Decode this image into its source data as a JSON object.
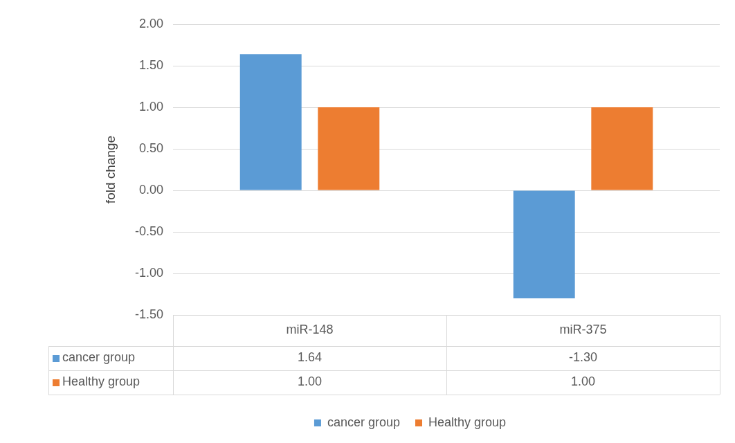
{
  "chart_data": {
    "type": "bar",
    "ylabel": "fold change",
    "categories": [
      "miR-148",
      "miR-375"
    ],
    "series": [
      {
        "name": "cancer group",
        "color": "#5b9bd5",
        "values": [
          1.64,
          -1.3
        ],
        "value_labels": [
          "1.64",
          "-1.30"
        ]
      },
      {
        "name": "Healthy group",
        "color": "#ed7d31",
        "values": [
          1.0,
          1.0
        ],
        "value_labels": [
          "1.00",
          "1.00"
        ]
      }
    ],
    "ylim": [
      -1.5,
      2.0
    ],
    "yticks": [
      {
        "value": -1.5,
        "label": "-1.50"
      },
      {
        "value": -1.0,
        "label": "-1.00"
      },
      {
        "value": -0.5,
        "label": "-0.50"
      },
      {
        "value": 0,
        "label": "0.00"
      },
      {
        "value": 0.5,
        "label": "0.50"
      },
      {
        "value": 1.0,
        "label": "1.00"
      },
      {
        "value": 1.5,
        "label": "1.50"
      },
      {
        "value": 2.0,
        "label": "2.00"
      }
    ],
    "grid": "y",
    "legend": "bottom"
  }
}
